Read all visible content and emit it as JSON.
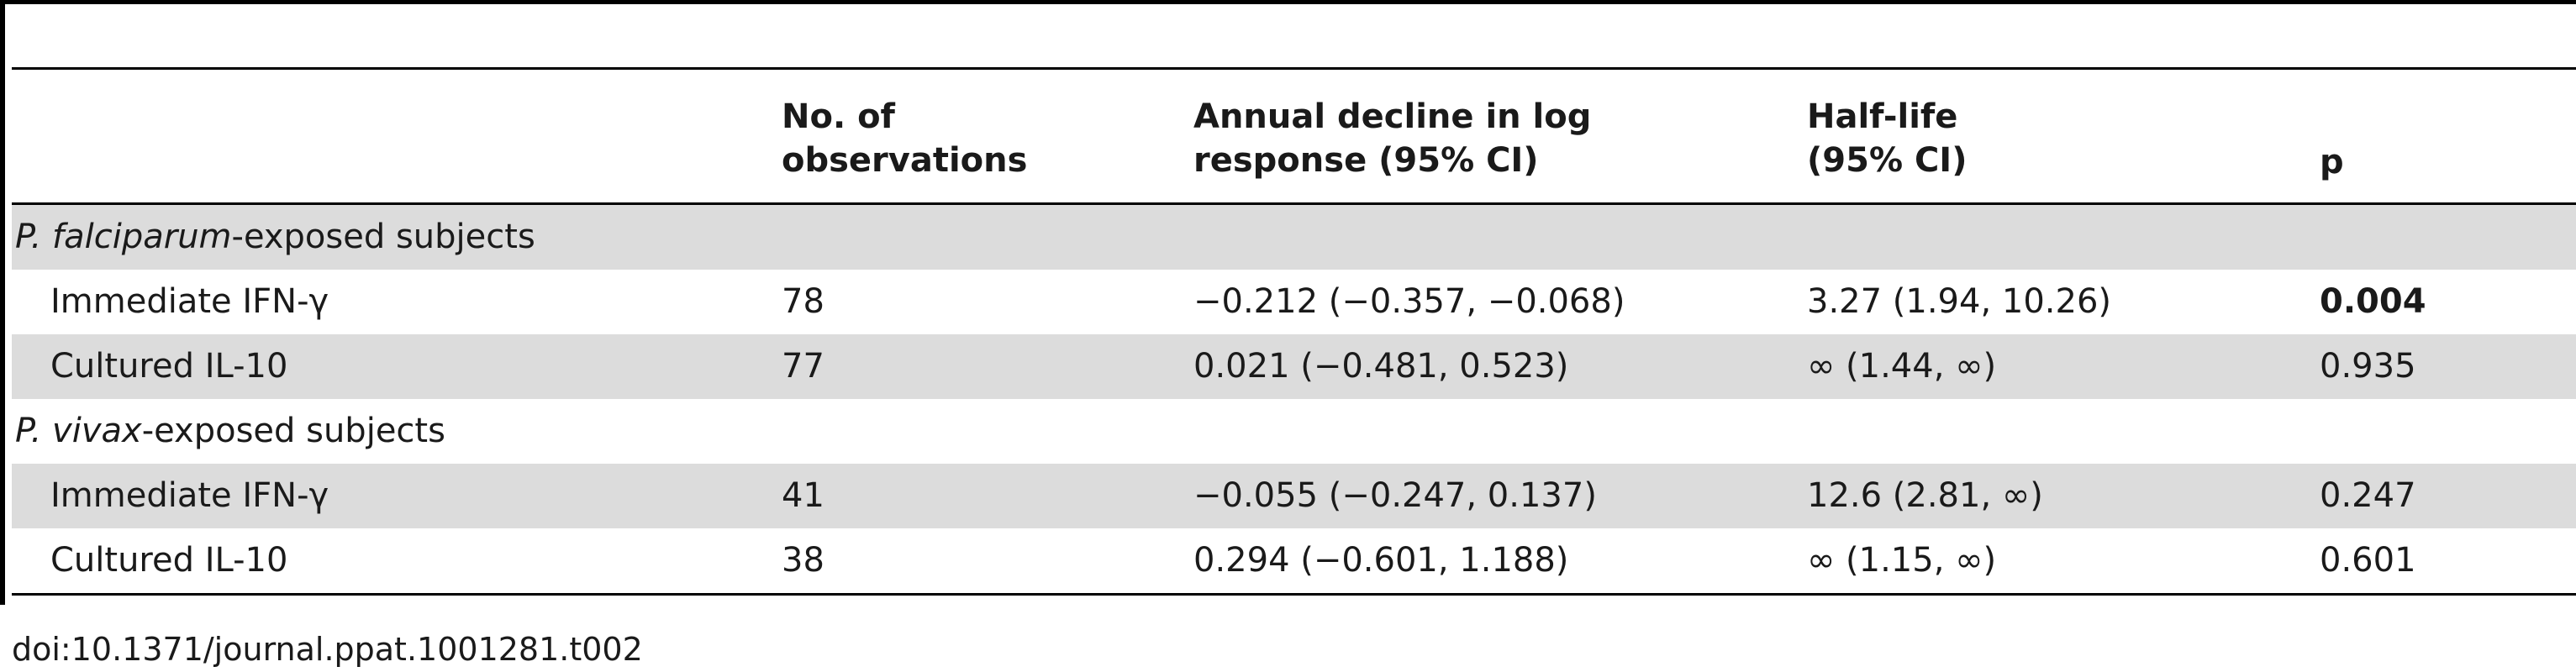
{
  "table": {
    "headers": {
      "observations": [
        "No. of",
        "observations"
      ],
      "decline": [
        "Annual decline in log",
        "response (95% CI)"
      ],
      "halflife": [
        "Half-life",
        "(95% CI)"
      ],
      "p": "p"
    },
    "groups": [
      {
        "species": "P. falciparum",
        "suffix": "-exposed subjects",
        "rows": [
          {
            "label": "Immediate IFN-γ",
            "observations": "78",
            "decline": "−0.212 (−0.357, −0.068)",
            "halflife": "3.27 (1.94, 10.26)",
            "p": "0.004",
            "p_bold": true
          },
          {
            "label": "Cultured IL-10",
            "observations": "77",
            "decline": "0.021 (−0.481, 0.523)",
            "halflife": "∞ (1.44, ∞)",
            "p": "0.935",
            "p_bold": false
          }
        ]
      },
      {
        "species": "P. vivax",
        "suffix": "-exposed subjects",
        "rows": [
          {
            "label": "Immediate IFN-γ",
            "observations": "41",
            "decline": "−0.055 (−0.247, 0.137)",
            "halflife": "12.6 (2.81, ∞)",
            "p": "0.247",
            "p_bold": false
          },
          {
            "label": "Cultured IL-10",
            "observations": "38",
            "decline": "0.294 (−0.601, 1.188)",
            "halflife": "∞ (1.15, ∞)",
            "p": "0.601",
            "p_bold": false
          }
        ]
      }
    ]
  },
  "caption": "doi:10.1371/journal.ppat.1001281.t002"
}
